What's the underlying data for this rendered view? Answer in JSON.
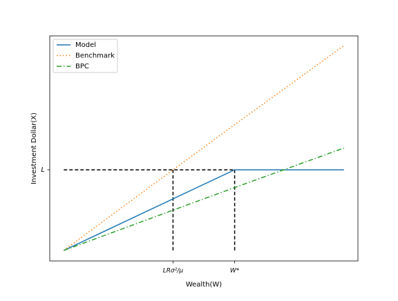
{
  "chart_data": {
    "type": "line",
    "x": [
      0,
      0.39,
      0.61,
      1
    ],
    "series": [
      {
        "name": "Model",
        "color": "#1f77b4",
        "dash": "solid",
        "values": [
          0,
          0.64,
          1,
          1
        ]
      },
      {
        "name": "Benchmark",
        "color": "#ff7f0e",
        "dash": "dotted",
        "values": [
          0,
          1,
          1.56,
          2.54
        ]
      },
      {
        "name": "BPC",
        "color": "#2ca02c",
        "dash": "dashdot",
        "values": [
          0,
          0.5,
          0.78,
          1.27
        ]
      }
    ],
    "xlabel": "Wealth(W)",
    "ylabel": "Investment Dollar(X)",
    "xlim": [
      -0.05,
      1.05
    ],
    "ylim": [
      -0.13,
      2.66
    ],
    "xticks": [
      {
        "value": 0.39,
        "label": "LRσ²/μ"
      },
      {
        "value": 0.61,
        "label": "W*"
      }
    ],
    "yticks": [
      {
        "value": 1,
        "label": "L"
      }
    ],
    "guides": true,
    "legend": "upper left"
  }
}
